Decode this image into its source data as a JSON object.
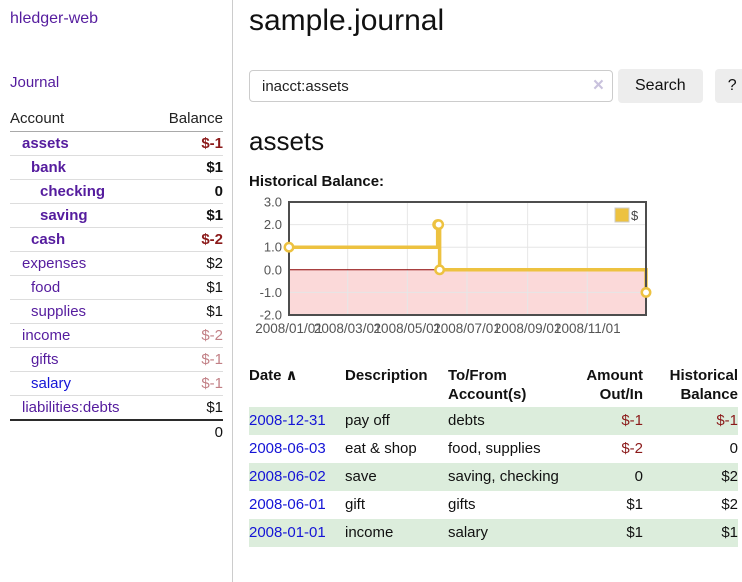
{
  "colors": {
    "purple": "#551c9e",
    "blue": "#1414d6",
    "negative": "#8b1a1a",
    "rose": "#c28086",
    "black": "#111111",
    "row_stripe_green": "#dceddc",
    "chart_line": "#edc240",
    "chart_negative_fill": "#fbd9d9",
    "chart_zero_line": "#8b0000",
    "chart_frame": "#4d4d4d",
    "chart_grid": "#e6e6e6",
    "chart_tick_text": "#545454"
  },
  "app": {
    "title": "hledger-web"
  },
  "sidebar": {
    "nav_journal": "Journal",
    "accounts_table": {
      "col_account": "Account",
      "col_balance": "Balance",
      "rows": [
        {
          "account": "assets",
          "level": 1,
          "bold": true,
          "link_color": "purple",
          "balance": "$-1",
          "balance_color": "negative"
        },
        {
          "account": "bank",
          "level": 2,
          "bold": true,
          "link_color": "purple",
          "balance": "$1",
          "balance_color": "black"
        },
        {
          "account": "checking",
          "level": 3,
          "bold": true,
          "link_color": "purple",
          "balance": "0",
          "balance_color": "black"
        },
        {
          "account": "saving",
          "level": 3,
          "bold": true,
          "link_color": "purple",
          "balance": "$1",
          "balance_color": "black"
        },
        {
          "account": "cash",
          "level": 2,
          "bold": true,
          "link_color": "purple",
          "balance": "$-2",
          "balance_color": "negative"
        },
        {
          "account": "expenses",
          "level": 1,
          "bold": false,
          "link_color": "purple",
          "balance": "$2",
          "balance_color": "black"
        },
        {
          "account": "food",
          "level": 2,
          "bold": false,
          "link_color": "purple",
          "balance": "$1",
          "balance_color": "black"
        },
        {
          "account": "supplies",
          "level": 2,
          "bold": false,
          "link_color": "purple",
          "balance": "$1",
          "balance_color": "black"
        },
        {
          "account": "income",
          "level": 1,
          "bold": false,
          "link_color": "purple",
          "balance": "$-2",
          "balance_color": "rose"
        },
        {
          "account": "gifts",
          "level": 2,
          "bold": false,
          "link_color": "purple",
          "balance": "$-1",
          "balance_color": "rose"
        },
        {
          "account": "salary",
          "level": 2,
          "bold": false,
          "link_color": "blue",
          "balance": "$-1",
          "balance_color": "rose"
        },
        {
          "account": "liabilities:debts",
          "level": 1,
          "bold": false,
          "link_color": "purple",
          "balance": "$1",
          "balance_color": "black"
        }
      ],
      "total": "0"
    }
  },
  "header": {
    "title": "sample.journal"
  },
  "search": {
    "value": "inacct:assets",
    "clear_icon": "×",
    "button_label": "Search",
    "help_label": "?"
  },
  "account_page": {
    "heading": "assets",
    "chart_title": "Historical Balance:"
  },
  "chart_data": {
    "type": "line",
    "style": "step",
    "legend": "$",
    "ylim": [
      -2,
      3
    ],
    "yticks": [
      {
        "label": "3.0",
        "value": 3
      },
      {
        "label": "2.0",
        "value": 2
      },
      {
        "label": "1.0",
        "value": 1
      },
      {
        "label": "0.0",
        "value": 0
      },
      {
        "label": "-1.0",
        "value": -1
      },
      {
        "label": "-2.0",
        "value": -2
      }
    ],
    "x_range_days": [
      0,
      365
    ],
    "xticks": [
      {
        "label": "2008/01/01",
        "day": 0
      },
      {
        "label": "2008/03/01",
        "day": 60
      },
      {
        "label": "2008/05/01",
        "day": 121
      },
      {
        "label": "2008/07/01",
        "day": 182
      },
      {
        "label": "2008/09/01",
        "day": 244
      },
      {
        "label": "2008/11/01",
        "day": 305
      }
    ],
    "points": [
      {
        "date": "2008-01-01",
        "day": 0,
        "value": 1
      },
      {
        "date": "2008-06-01",
        "day": 152,
        "value": 2
      },
      {
        "date": "2008-06-02",
        "day": 153,
        "value": 2
      },
      {
        "date": "2008-06-03",
        "day": 154,
        "value": 0
      },
      {
        "date": "2008-12-31",
        "day": 365,
        "value": -1
      }
    ]
  },
  "register": {
    "headers": {
      "date": "Date",
      "sort_icon": "∧",
      "description": "Description",
      "accounts": [
        "To/From",
        "Account(s)"
      ],
      "amount": [
        "Amount",
        "Out/In"
      ],
      "balance": [
        "Historical",
        "Balance"
      ]
    },
    "rows": [
      {
        "date": "2008-12-31",
        "description": "pay off",
        "accounts": "debts",
        "amount": "$-1",
        "amount_color": "negative",
        "balance": "$-1",
        "balance_color": "negative",
        "shaded": true
      },
      {
        "date": "2008-06-03",
        "description": "eat & shop",
        "accounts": "food, supplies",
        "amount": "$-2",
        "amount_color": "negative",
        "balance": "0",
        "balance_color": "black",
        "shaded": false
      },
      {
        "date": "2008-06-02",
        "description": "save",
        "accounts": "saving, checking",
        "amount": "0",
        "amount_color": "black",
        "balance": "$2",
        "balance_color": "black",
        "shaded": true
      },
      {
        "date": "2008-06-01",
        "description": "gift",
        "accounts": "gifts",
        "amount": "$1",
        "amount_color": "black",
        "balance": "$2",
        "balance_color": "black",
        "shaded": false
      },
      {
        "date": "2008-01-01",
        "description": "income",
        "accounts": "salary",
        "amount": "$1",
        "amount_color": "black",
        "balance": "$1",
        "balance_color": "black",
        "shaded": true
      }
    ]
  }
}
